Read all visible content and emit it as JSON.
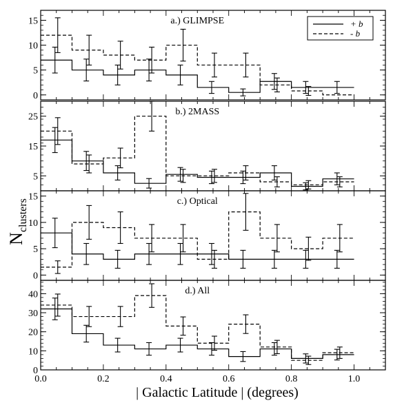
{
  "chart_data": [
    {
      "type": "histogram",
      "title": "a.) GLIMPSE",
      "bins": [
        0.0,
        0.1,
        0.2,
        0.3,
        0.4,
        0.5,
        0.6,
        0.7,
        0.8,
        0.9,
        1.0
      ],
      "ylim": [
        -1,
        17
      ],
      "yticks": [
        0,
        5,
        10,
        15
      ],
      "series": [
        {
          "name": "+b",
          "style": "solid",
          "values": [
            7,
            5,
            4,
            5,
            4,
            1.5,
            0.5,
            2.7,
            1.5,
            1.5
          ],
          "errors": [
            2.6,
            2.2,
            2.0,
            2.2,
            2.0,
            1.2,
            0.7,
            1.6,
            1.2,
            1.2
          ]
        },
        {
          "name": "-b",
          "style": "dashed",
          "values": [
            12,
            9,
            8,
            7,
            10,
            6,
            6,
            2,
            0.8,
            0
          ],
          "errors": [
            3.5,
            3.0,
            2.8,
            2.6,
            3.2,
            2.4,
            2.4,
            1.4,
            0.9,
            0
          ]
        }
      ],
      "legend": {
        "position": "top-right",
        "entries": [
          "+ b",
          "- b"
        ]
      }
    },
    {
      "type": "histogram",
      "title": "b.) 2MASS",
      "bins": [
        0.0,
        0.1,
        0.2,
        0.3,
        0.4,
        0.5,
        0.6,
        0.7,
        0.8,
        0.9,
        1.0
      ],
      "ylim": [
        0,
        30
      ],
      "yticks": [
        5,
        15,
        25
      ],
      "series": [
        {
          "name": "+b",
          "style": "solid",
          "values": [
            17,
            10,
            6,
            2.5,
            5.5,
            4.5,
            4.5,
            6,
            1.5,
            4
          ],
          "errors": [
            4.2,
            3.2,
            2.4,
            1.6,
            2.3,
            2.1,
            2.1,
            2.4,
            1.2,
            2.0
          ]
        },
        {
          "name": "-b",
          "style": "dashed",
          "values": [
            20,
            9,
            11,
            25,
            5,
            5,
            6,
            3,
            2,
            3
          ],
          "errors": [
            4.5,
            3.0,
            3.3,
            5.0,
            2.2,
            2.2,
            2.4,
            1.7,
            1.4,
            1.7
          ]
        }
      ]
    },
    {
      "type": "histogram",
      "title": "c.) Optical",
      "bins": [
        0.0,
        0.1,
        0.2,
        0.3,
        0.4,
        0.5,
        0.6,
        0.7,
        0.8,
        0.9,
        1.0
      ],
      "ylim": [
        -1,
        16
      ],
      "yticks": [
        0,
        5,
        10,
        15
      ],
      "series": [
        {
          "name": "+b",
          "style": "solid",
          "values": [
            8,
            4,
            3,
            4,
            4,
            4,
            3,
            3,
            3,
            3
          ],
          "errors": [
            2.8,
            2.0,
            1.7,
            2.0,
            2.0,
            2.0,
            1.7,
            1.7,
            1.7,
            1.7
          ]
        },
        {
          "name": "-b",
          "style": "dashed",
          "values": [
            1.5,
            10,
            9,
            7,
            7,
            3,
            12,
            7,
            5,
            7
          ],
          "errors": [
            1.2,
            3.2,
            3.0,
            2.6,
            2.6,
            1.7,
            3.5,
            2.6,
            2.2,
            2.6
          ]
        }
      ]
    },
    {
      "type": "histogram",
      "title": "d.) All",
      "bins": [
        0.0,
        0.1,
        0.2,
        0.3,
        0.4,
        0.5,
        0.6,
        0.7,
        0.8,
        0.9,
        1.0
      ],
      "ylim": [
        0,
        47
      ],
      "yticks": [
        0,
        10,
        20,
        30,
        40
      ],
      "series": [
        {
          "name": "+b",
          "style": "solid",
          "values": [
            32,
            19,
            13,
            11,
            13,
            11,
            7,
            11,
            6,
            8
          ],
          "errors": [
            5.7,
            4.4,
            3.6,
            3.3,
            3.6,
            3.3,
            2.6,
            3.3,
            2.4,
            2.8
          ]
        },
        {
          "name": "-b",
          "style": "dashed",
          "values": [
            34,
            28,
            28,
            39,
            23,
            14,
            24,
            12,
            5,
            9
          ],
          "errors": [
            5.8,
            5.3,
            5.3,
            6.2,
            4.8,
            3.7,
            4.9,
            3.5,
            2.2,
            3.0
          ]
        }
      ]
    }
  ],
  "axes": {
    "xlabel": "| Galactic Latitude | (degrees)",
    "ylabel_main": "N",
    "ylabel_sub": "clusters",
    "xlim": [
      0.0,
      1.1
    ],
    "xticks": [
      "0.0",
      "0.2",
      "0.4",
      "0.6",
      "0.8",
      "1.0"
    ],
    "xtick_values": [
      0.0,
      0.2,
      0.4,
      0.6,
      0.8,
      1.0
    ]
  },
  "legend": {
    "plus_label": "+ b",
    "minus_label": "- b"
  }
}
